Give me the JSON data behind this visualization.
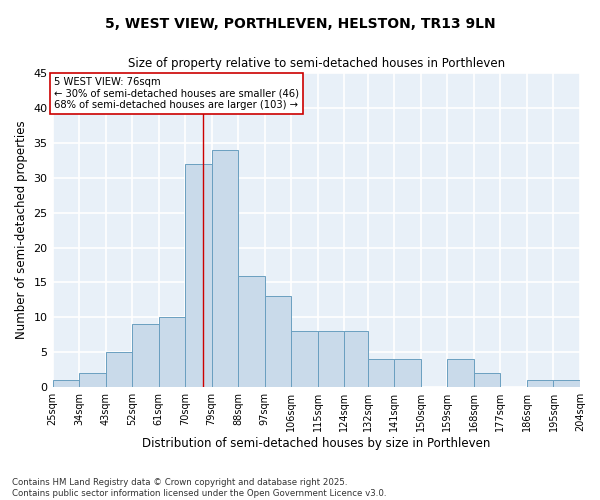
{
  "title1": "5, WEST VIEW, PORTHLEVEN, HELSTON, TR13 9LN",
  "title2": "Size of property relative to semi-detached houses in Porthleven",
  "xlabel": "Distribution of semi-detached houses by size in Porthleven",
  "ylabel": "Number of semi-detached properties",
  "bins": [
    25,
    34,
    43,
    52,
    61,
    70,
    79,
    88,
    97,
    106,
    115,
    124,
    132,
    141,
    150,
    159,
    168,
    177,
    186,
    195,
    204
  ],
  "counts": [
    1,
    2,
    5,
    9,
    10,
    32,
    34,
    16,
    13,
    8,
    8,
    8,
    4,
    4,
    0,
    4,
    2,
    0,
    1,
    1
  ],
  "bar_color": "#c9daea",
  "bar_edge_color": "#6a9fc0",
  "bg_color": "#e8f0f8",
  "grid_color": "#ffffff",
  "vline_x": 76,
  "vline_color": "#cc0000",
  "annotation_text": "5 WEST VIEW: 76sqm\n← 30% of semi-detached houses are smaller (46)\n68% of semi-detached houses are larger (103) →",
  "annotation_box_color": "#cc0000",
  "ylim": [
    0,
    45
  ],
  "yticks": [
    0,
    5,
    10,
    15,
    20,
    25,
    30,
    35,
    40,
    45
  ],
  "footer_text": "Contains HM Land Registry data © Crown copyright and database right 2025.\nContains public sector information licensed under the Open Government Licence v3.0.",
  "tick_labels": [
    "25sqm",
    "34sqm",
    "43sqm",
    "52sqm",
    "61sqm",
    "70sqm",
    "79sqm",
    "88sqm",
    "97sqm",
    "106sqm",
    "115sqm",
    "124sqm",
    "132sqm",
    "141sqm",
    "150sqm",
    "159sqm",
    "168sqm",
    "177sqm",
    "186sqm",
    "195sqm",
    "204sqm"
  ]
}
